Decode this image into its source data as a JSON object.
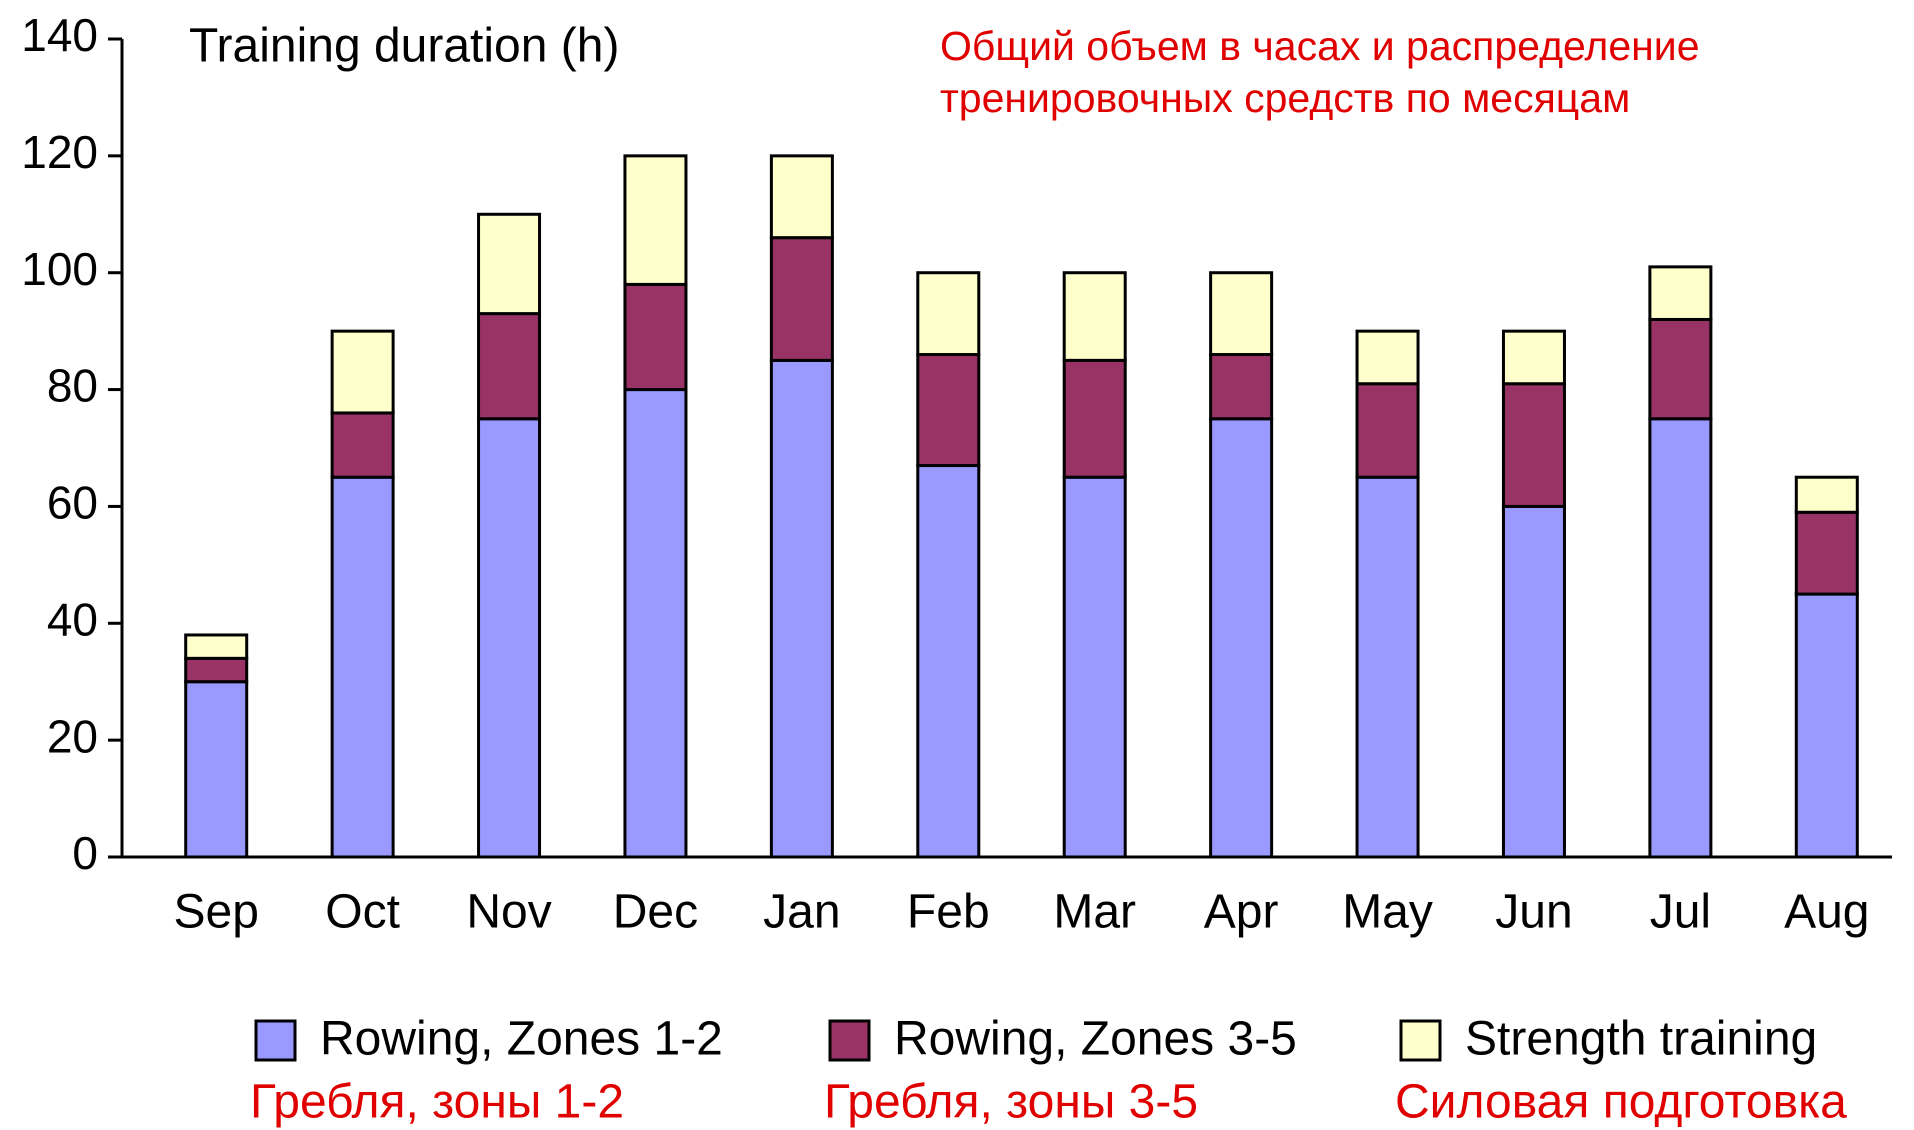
{
  "chart_data": {
    "type": "stacked_bar",
    "y_label": "Training duration (h)",
    "annotation": [
      "Общий объем в часах и распределение",
      "тренировочных средств по месяцам"
    ],
    "categories": [
      "Sep",
      "Oct",
      "Nov",
      "Dec",
      "Jan",
      "Feb",
      "Mar",
      "Apr",
      "May",
      "Jun",
      "Jul",
      "Aug"
    ],
    "series": [
      {
        "name": "Rowing, Zones 1-2",
        "name_ru": "Гребля, зоны 1-2",
        "color": "#9999ff",
        "values": [
          30,
          65,
          75,
          80,
          85,
          67,
          65,
          75,
          65,
          60,
          75,
          45
        ]
      },
      {
        "name": "Rowing, Zones 3-5",
        "name_ru": "Гребля, зоны 3-5",
        "color": "#993366",
        "values": [
          4,
          11,
          18,
          18,
          21,
          19,
          20,
          11,
          16,
          21,
          17,
          14
        ]
      },
      {
        "name": "Strength training",
        "name_ru": "Силовая подготовка",
        "color": "#ffffcc",
        "values": [
          4,
          14,
          17,
          22,
          14,
          14,
          15,
          14,
          9,
          9,
          9,
          6
        ]
      }
    ],
    "ylim": [
      0,
      140
    ],
    "yticks": [
      0,
      20,
      40,
      60,
      80,
      100,
      120,
      140
    ],
    "grid": false,
    "legend": "bottom"
  }
}
